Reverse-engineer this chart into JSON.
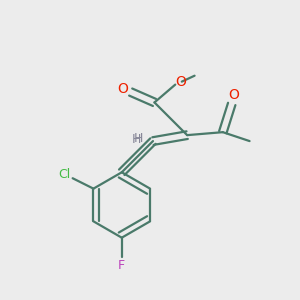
{
  "bg_color": "#ececec",
  "bond_color": "#4a7a6a",
  "o_color": "#ee2200",
  "cl_color": "#44bb44",
  "f_color": "#bb44bb",
  "h_color": "#888899",
  "line_width": 1.6,
  "fig_size": [
    3.0,
    3.0
  ],
  "dpi": 100,
  "xlim": [
    0,
    10
  ],
  "ylim": [
    0,
    10
  ]
}
